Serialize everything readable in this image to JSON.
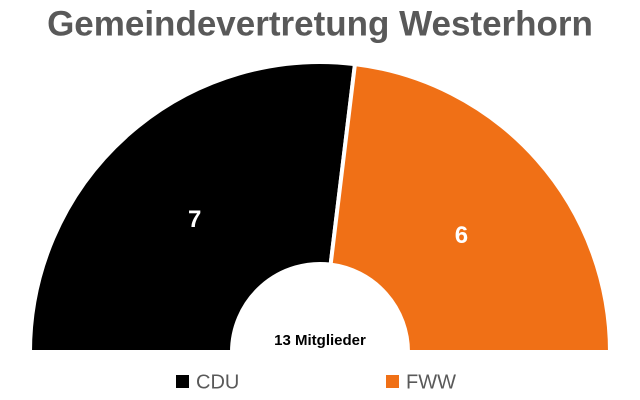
{
  "chart_data": {
    "type": "half-donut",
    "title": "Gemeindevertretung Westerhorn",
    "center_label": "13 Mitglieder",
    "categories": [
      "CDU",
      "FWW"
    ],
    "values": [
      7,
      6
    ],
    "colors": [
      "#000000",
      "#f07016"
    ]
  }
}
